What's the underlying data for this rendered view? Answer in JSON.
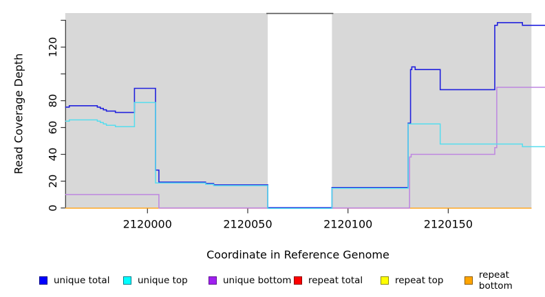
{
  "chart_data": {
    "type": "line",
    "subtype": "step-coverage-plot",
    "title": "",
    "xlabel": "Coordinate in Reference Genome",
    "ylabel": "Read Coverage Depth",
    "xlim": [
      2119959,
      2120198
    ],
    "ylim": [
      0,
      145
    ],
    "grid": false,
    "background_region_color": "#D8D8D8",
    "x_axis": {
      "ticks": [
        2120000,
        2120050,
        2120100,
        2120150
      ],
      "labels": [
        "2120000",
        "2120050",
        "2120100",
        "2120150"
      ]
    },
    "y_axis": {
      "ticks": [
        0,
        20,
        40,
        60,
        80,
        100,
        120,
        140
      ],
      "labels": [
        "0",
        "20",
        "40",
        "60",
        "80",
        "",
        "120",
        ""
      ]
    },
    "amplicon_regions": [
      {
        "from": 2119959,
        "to": 2120060
      },
      {
        "from": 2120092,
        "to": 2120191.5
      }
    ],
    "coverage_gap": {
      "from": 2120060,
      "to": 2120092,
      "top_line_color": "#555555"
    },
    "series": [
      {
        "name": "unique total",
        "color": "#2020DD",
        "steps": [
          [
            2119959,
            75
          ],
          [
            2119961,
            76
          ],
          [
            2119975,
            75
          ],
          [
            2119976.5,
            74
          ],
          [
            2119978,
            73
          ],
          [
            2119979.5,
            72
          ],
          [
            2119984,
            71
          ],
          [
            2119993.5,
            89
          ],
          [
            2120004,
            28
          ],
          [
            2120005.7,
            19
          ],
          [
            2120029,
            18
          ],
          [
            2120033,
            17
          ],
          [
            2120060,
            0
          ],
          [
            2120092,
            15
          ],
          [
            2120130,
            63
          ],
          [
            2120131.2,
            103
          ],
          [
            2120131.8,
            105
          ],
          [
            2120133.5,
            103
          ],
          [
            2120146,
            88
          ],
          [
            2120173.2,
            136
          ],
          [
            2120174.5,
            138
          ],
          [
            2120187,
            136
          ],
          [
            2120198.3,
            136
          ]
        ]
      },
      {
        "name": "unique top",
        "color": "#55DDEE",
        "steps": [
          [
            2119959,
            65
          ],
          [
            2119961,
            66
          ],
          [
            2119975,
            65
          ],
          [
            2119976.5,
            64
          ],
          [
            2119978,
            63
          ],
          [
            2119979.5,
            62
          ],
          [
            2119984,
            61
          ],
          [
            2119993.5,
            79
          ],
          [
            2120004,
            19
          ],
          [
            2120029,
            18
          ],
          [
            2120033,
            17
          ],
          [
            2120060,
            0
          ],
          [
            2120092,
            15
          ],
          [
            2120130,
            63
          ],
          [
            2120146,
            48
          ],
          [
            2120187,
            46
          ],
          [
            2120198.3,
            46
          ]
        ]
      },
      {
        "name": "unique bottom",
        "color": "#BD85E0",
        "steps": [
          [
            2119959,
            10
          ],
          [
            2120005.7,
            0
          ],
          [
            2120130.7,
            38
          ],
          [
            2120131.5,
            40
          ],
          [
            2120173.2,
            45
          ],
          [
            2120174.2,
            90
          ],
          [
            2120198.3,
            90
          ]
        ]
      },
      {
        "name": "repeat total",
        "color": "#DD6A6E",
        "steps": [
          [
            2119959,
            0
          ],
          [
            2120191.5,
            0
          ]
        ]
      },
      {
        "name": "repeat top",
        "color": "#E6E600",
        "steps": [
          [
            2119959,
            0
          ],
          [
            2120191.5,
            0
          ]
        ]
      },
      {
        "name": "repeat bottom",
        "color": "#FFA520",
        "steps": [
          [
            2119959,
            0
          ],
          [
            2120191.5,
            0
          ]
        ]
      }
    ],
    "zero_line_display_segments": [
      {
        "series": "repeat top",
        "color": "#E6E600",
        "from": 2119959,
        "to": 2120191.5
      },
      {
        "series": "repeat total",
        "color": "#DD6A6E",
        "from": 2119959,
        "to": 2120191.5
      },
      {
        "series": "repeat bottom",
        "color": "#FFA520",
        "from": 2119959,
        "to": 2120005.7
      },
      {
        "series": "repeat bottom",
        "color": "#FFA520",
        "from": 2120130.7,
        "to": 2120191.5
      }
    ],
    "legend": [
      {
        "label": "unique total",
        "fill": "#0000FF",
        "border": "#000088"
      },
      {
        "label": "unique top",
        "fill": "#00FFFF",
        "border": "#007B8B"
      },
      {
        "label": "unique bottom",
        "fill": "#A020F0",
        "border": "#5E1292"
      },
      {
        "label": "repeat total",
        "fill": "#FF0000",
        "border": "#8B0000"
      },
      {
        "label": "repeat top",
        "fill": "#FFFF00",
        "border": "#8B8B00"
      },
      {
        "label": "repeat bottom",
        "fill": "#FFA500",
        "border": "#8B5A00"
      }
    ],
    "legend_position": "bottom"
  }
}
